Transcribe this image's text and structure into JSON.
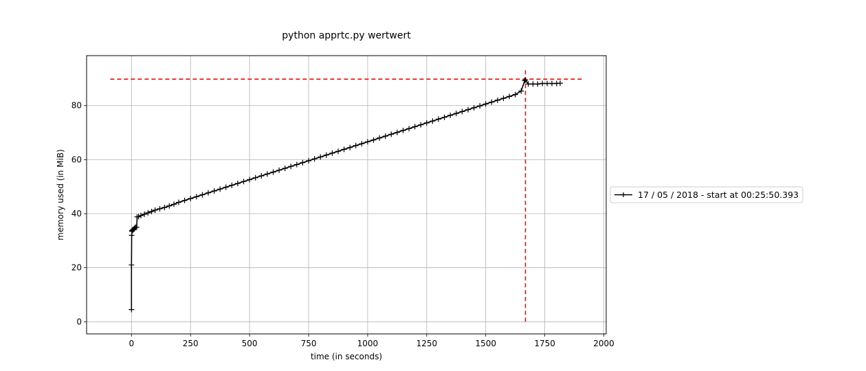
{
  "chart_data": {
    "type": "line",
    "title": "python apprtc.py wertwert",
    "xlabel": "time (in seconds)",
    "ylabel": "memory used (in MiB)",
    "xlim": [
      -190,
      2010
    ],
    "ylim": [
      -4.5,
      98.5
    ],
    "xticks": [
      0,
      250,
      500,
      750,
      1000,
      1250,
      1500,
      1750,
      2000
    ],
    "yticks": [
      0,
      20,
      40,
      60,
      80
    ],
    "grid": true,
    "legend_position": "right",
    "series": [
      {
        "name": "17 / 05 / 2018 - start at 00:25:50.393",
        "color": "#000000",
        "marker": "+",
        "x": [
          0,
          0,
          1,
          2,
          3,
          6,
          8,
          12,
          14,
          18,
          22,
          24,
          30,
          40,
          55,
          70,
          85,
          100,
          120,
          140,
          160,
          180,
          200,
          225,
          250,
          275,
          300,
          325,
          350,
          375,
          400,
          425,
          450,
          475,
          500,
          525,
          550,
          575,
          600,
          625,
          650,
          675,
          700,
          725,
          750,
          775,
          800,
          825,
          850,
          875,
          900,
          925,
          950,
          975,
          1000,
          1025,
          1050,
          1075,
          1100,
          1125,
          1150,
          1175,
          1200,
          1225,
          1250,
          1275,
          1300,
          1325,
          1350,
          1375,
          1400,
          1425,
          1450,
          1475,
          1500,
          1525,
          1550,
          1575,
          1600,
          1625,
          1650,
          1665,
          1668,
          1680,
          1700,
          1720,
          1740,
          1760,
          1780,
          1800,
          1815
        ],
        "y": [
          4.5,
          21,
          32,
          33.5,
          33.8,
          34,
          34.2,
          34.5,
          34.8,
          35,
          35,
          38.8,
          38.9,
          39.3,
          39.8,
          40.3,
          40.8,
          41.3,
          41.8,
          42.3,
          42.9,
          43.5,
          44.2,
          44.9,
          45.6,
          46.3,
          47.0,
          47.7,
          48.4,
          49.1,
          49.8,
          50.5,
          51.2,
          51.9,
          52.6,
          53.3,
          54.0,
          54.7,
          55.4,
          56.1,
          56.8,
          57.5,
          58.2,
          58.9,
          59.6,
          60.3,
          61.0,
          61.7,
          62.4,
          63.1,
          63.8,
          64.5,
          65.2,
          65.9,
          66.6,
          67.3,
          68.0,
          68.7,
          69.4,
          70.1,
          70.8,
          71.5,
          72.2,
          72.9,
          73.6,
          74.3,
          75.0,
          75.7,
          76.4,
          77.1,
          77.8,
          78.5,
          79.2,
          79.9,
          80.6,
          81.3,
          82.0,
          82.7,
          83.4,
          84.1,
          85.4,
          89.3,
          89.5,
          88.0,
          88.0,
          88.0,
          88.2,
          88.2,
          88.2,
          88.2,
          88.3
        ]
      }
    ],
    "reference_lines": [
      {
        "orientation": "horizontal",
        "value": 89.8,
        "from": -90,
        "to": 1910,
        "color": "#ff0000",
        "style": "dashed"
      },
      {
        "orientation": "vertical",
        "value": 1668,
        "from": 0,
        "to": 94,
        "color": "#ff0000",
        "style": "dashed"
      }
    ]
  }
}
